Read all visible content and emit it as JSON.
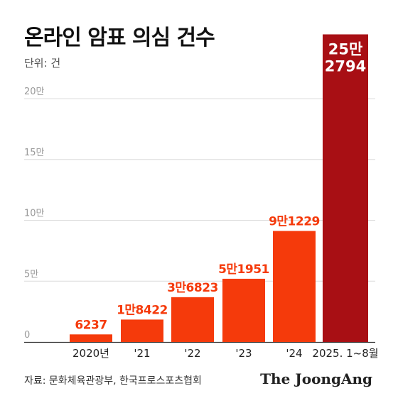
{
  "header": {
    "title": "온라인 암표 의심 건수",
    "unit": "단위: 건"
  },
  "footer": {
    "source": "자료: 문화체육관광부, 한국프로스포츠협회",
    "brand": "The JoongAng"
  },
  "colors": {
    "bar": "#f53a0b",
    "bar_highlight": "#a80f14",
    "label": "#f53a0b",
    "label_highlight": "#ffffff",
    "grid": "#dcdcdc",
    "tick": "#999999"
  },
  "chart_data": {
    "type": "bar",
    "title": "온라인 암표 의심 건수",
    "ylabel": "단위: 건",
    "categories": [
      "2020년",
      "'21",
      "'22",
      "'23",
      "'24",
      "2025. 1~8월"
    ],
    "values": [
      6237,
      18422,
      36823,
      51951,
      91229,
      252794
    ],
    "value_labels": [
      "6237",
      "1만8422",
      "3만6823",
      "5만1951",
      "9만1229",
      "25만\n2794"
    ],
    "yticks": [
      0,
      50000,
      100000,
      150000,
      200000
    ],
    "ytick_labels": [
      "0",
      "5만",
      "10만",
      "15만",
      "20만"
    ],
    "ylim": [
      0,
      260000
    ],
    "grid": true,
    "highlight_index": 5
  }
}
